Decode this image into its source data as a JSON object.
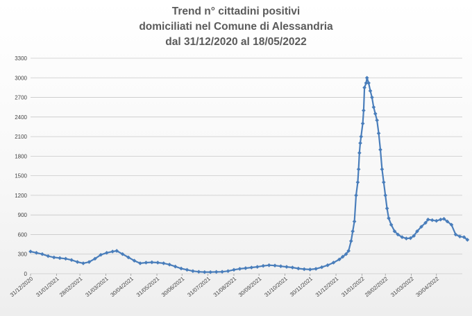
{
  "chart_data": {
    "type": "line",
    "title_lines": [
      "Trend n° cittadini positivi",
      "domiciliati nel Comune di Alessandria",
      "dal 31/12/2020 al 18/05/2022"
    ],
    "xlabel": "",
    "ylabel": "",
    "ylim": [
      0,
      3300
    ],
    "yticks": [
      0,
      300,
      600,
      900,
      1200,
      1500,
      1800,
      2100,
      2400,
      2700,
      3000,
      3300
    ],
    "xlim": [
      "2020-12-31",
      "2022-05-18"
    ],
    "xticks": [
      "31/12/2020",
      "31/01/2021",
      "28/02/2021",
      "31/03/2021",
      "30/04/2021",
      "31/05/2021",
      "30/06/2021",
      "31/07/2021",
      "31/08/2021",
      "30/09/2021",
      "31/10/2021",
      "30/11/2021",
      "31/12/2021",
      "31/01/2022",
      "28/02/2022",
      "31/03/2022",
      "30/04/2022"
    ],
    "grid": true,
    "legend": "none",
    "line_color": "#4a7ebb",
    "series": [
      {
        "points": [
          [
            "2020-12-31",
            340
          ],
          [
            "2021-01-07",
            320
          ],
          [
            "2021-01-14",
            300
          ],
          [
            "2021-01-21",
            270
          ],
          [
            "2021-01-28",
            250
          ],
          [
            "2021-02-04",
            240
          ],
          [
            "2021-02-11",
            230
          ],
          [
            "2021-02-18",
            210
          ],
          [
            "2021-02-25",
            180
          ],
          [
            "2021-03-04",
            160
          ],
          [
            "2021-03-11",
            180
          ],
          [
            "2021-03-18",
            230
          ],
          [
            "2021-03-25",
            290
          ],
          [
            "2021-04-01",
            320
          ],
          [
            "2021-04-08",
            340
          ],
          [
            "2021-04-13",
            350
          ],
          [
            "2021-04-20",
            300
          ],
          [
            "2021-04-27",
            250
          ],
          [
            "2021-05-04",
            200
          ],
          [
            "2021-05-11",
            160
          ],
          [
            "2021-05-18",
            170
          ],
          [
            "2021-05-25",
            175
          ],
          [
            "2021-06-01",
            170
          ],
          [
            "2021-06-08",
            160
          ],
          [
            "2021-06-15",
            140
          ],
          [
            "2021-06-22",
            110
          ],
          [
            "2021-06-29",
            80
          ],
          [
            "2021-07-06",
            60
          ],
          [
            "2021-07-13",
            40
          ],
          [
            "2021-07-20",
            30
          ],
          [
            "2021-07-27",
            25
          ],
          [
            "2021-08-03",
            25
          ],
          [
            "2021-08-10",
            28
          ],
          [
            "2021-08-17",
            30
          ],
          [
            "2021-08-24",
            40
          ],
          [
            "2021-08-31",
            60
          ],
          [
            "2021-09-07",
            75
          ],
          [
            "2021-09-14",
            85
          ],
          [
            "2021-09-21",
            95
          ],
          [
            "2021-09-28",
            105
          ],
          [
            "2021-10-05",
            120
          ],
          [
            "2021-10-12",
            130
          ],
          [
            "2021-10-19",
            125
          ],
          [
            "2021-10-26",
            115
          ],
          [
            "2021-11-02",
            105
          ],
          [
            "2021-11-09",
            95
          ],
          [
            "2021-11-16",
            80
          ],
          [
            "2021-11-23",
            70
          ],
          [
            "2021-11-30",
            65
          ],
          [
            "2021-12-07",
            75
          ],
          [
            "2021-12-14",
            100
          ],
          [
            "2021-12-21",
            130
          ],
          [
            "2021-12-28",
            170
          ],
          [
            "2022-01-04",
            220
          ],
          [
            "2022-01-08",
            260
          ],
          [
            "2022-01-12",
            300
          ],
          [
            "2022-01-15",
            350
          ],
          [
            "2022-01-18",
            500
          ],
          [
            "2022-01-20",
            650
          ],
          [
            "2022-01-22",
            800
          ],
          [
            "2022-01-24",
            1200
          ],
          [
            "2022-01-26",
            1400
          ],
          [
            "2022-01-27",
            1600
          ],
          [
            "2022-01-28",
            1850
          ],
          [
            "2022-01-29",
            2000
          ],
          [
            "2022-01-30",
            2100
          ],
          [
            "2022-02-01",
            2300
          ],
          [
            "2022-02-02",
            2500
          ],
          [
            "2022-02-03",
            2850
          ],
          [
            "2022-02-05",
            2920
          ],
          [
            "2022-02-06",
            3000
          ],
          [
            "2022-02-08",
            2920
          ],
          [
            "2022-02-10",
            2800
          ],
          [
            "2022-02-12",
            2700
          ],
          [
            "2022-02-14",
            2550
          ],
          [
            "2022-02-16",
            2450
          ],
          [
            "2022-02-18",
            2350
          ],
          [
            "2022-02-20",
            2150
          ],
          [
            "2022-02-22",
            1900
          ],
          [
            "2022-02-24",
            1600
          ],
          [
            "2022-02-26",
            1400
          ],
          [
            "2022-02-28",
            1200
          ],
          [
            "2022-03-02",
            1000
          ],
          [
            "2022-03-04",
            850
          ],
          [
            "2022-03-07",
            750
          ],
          [
            "2022-03-11",
            650
          ],
          [
            "2022-03-15",
            600
          ],
          [
            "2022-03-20",
            560
          ],
          [
            "2022-03-25",
            540
          ],
          [
            "2022-03-30",
            545
          ],
          [
            "2022-04-03",
            580
          ],
          [
            "2022-04-07",
            650
          ],
          [
            "2022-04-12",
            720
          ],
          [
            "2022-04-17",
            780
          ],
          [
            "2022-04-20",
            830
          ],
          [
            "2022-04-25",
            820
          ],
          [
            "2022-04-30",
            810
          ],
          [
            "2022-05-05",
            830
          ],
          [
            "2022-05-09",
            840
          ],
          [
            "2022-05-13",
            800
          ],
          [
            "2022-05-18",
            750
          ],
          [
            "2022-05-23",
            600
          ],
          [
            "2022-05-28",
            570
          ],
          [
            "2022-06-02",
            560
          ],
          [
            "2022-06-06",
            520
          ]
        ]
      }
    ]
  }
}
